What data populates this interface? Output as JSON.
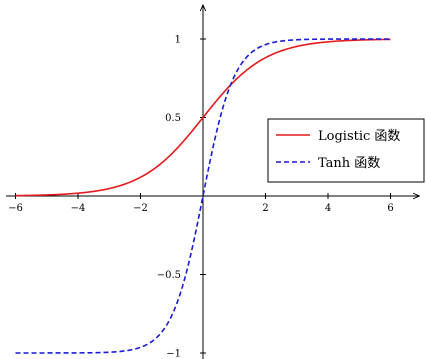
{
  "chart_data": {
    "type": "line",
    "title": "",
    "xlabel": "",
    "ylabel": "",
    "xlim": [
      -6.3,
      6.9
    ],
    "ylim": [
      -1.05,
      1.2
    ],
    "x_ticks": [
      {
        "value": -6,
        "label": "−6"
      },
      {
        "value": -4,
        "label": "−4"
      },
      {
        "value": -2,
        "label": "−2"
      },
      {
        "value": 2,
        "label": "2"
      },
      {
        "value": 4,
        "label": "4"
      },
      {
        "value": 6,
        "label": "6"
      }
    ],
    "y_ticks": [
      {
        "value": -1,
        "label": "−1"
      },
      {
        "value": -0.5,
        "label": "−0.5"
      },
      {
        "value": 0.5,
        "label": "0.5"
      },
      {
        "value": 1,
        "label": "1"
      }
    ],
    "x_range": [
      -6,
      6
    ],
    "grid": false,
    "legend_position": "right",
    "series": [
      {
        "name": "Logistic 函数",
        "function": "logistic",
        "color": "#e41a1c",
        "style": "solid",
        "x": [
          -6,
          -5,
          -4,
          -3,
          -2,
          -1,
          0,
          1,
          2,
          3,
          4,
          5,
          6
        ],
        "y": [
          0.0025,
          0.0067,
          0.018,
          0.0474,
          0.1192,
          0.2689,
          0.5,
          0.7311,
          0.8808,
          0.9526,
          0.982,
          0.9933,
          0.9975
        ]
      },
      {
        "name": "Tanh 函数",
        "function": "tanh",
        "color": "#1a1ad6",
        "style": "dashed",
        "x": [
          -6,
          -5,
          -4,
          -3,
          -2,
          -1,
          0,
          1,
          2,
          3,
          4,
          5,
          6
        ],
        "y": [
          -1.0,
          -0.9999,
          -0.9993,
          -0.9951,
          -0.964,
          -0.7616,
          0.0,
          0.7616,
          0.964,
          0.9951,
          0.9993,
          0.9999,
          1.0
        ]
      }
    ]
  }
}
